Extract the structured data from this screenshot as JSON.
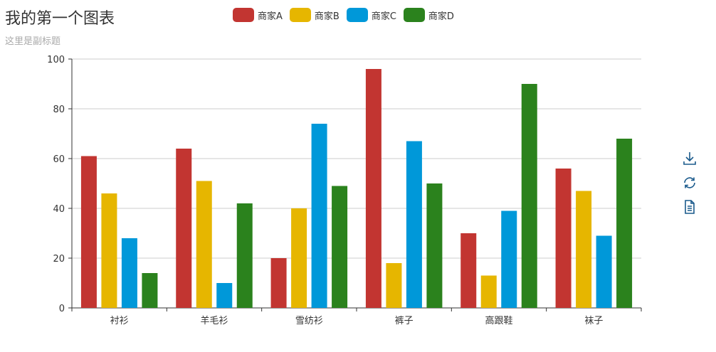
{
  "title": "我的第一个图表",
  "subtitle": "这里是副标题",
  "colors": {
    "series": [
      "#c23531",
      "#e6b600",
      "#0098d9",
      "#2b821d"
    ],
    "axis": "#333333",
    "grid": "#cccccc",
    "toolbox": "#1a5a8c"
  },
  "legend": [
    "商家A",
    "商家B",
    "商家C",
    "商家D"
  ],
  "toolbox": {
    "icons": [
      "download-icon",
      "refresh-icon",
      "data-view-icon"
    ]
  },
  "chart_data": {
    "type": "bar",
    "title": "我的第一个图表",
    "subtitle": "这里是副标题",
    "categories": [
      "衬衫",
      "羊毛衫",
      "雪纺衫",
      "裤子",
      "高跟鞋",
      "袜子"
    ],
    "series": [
      {
        "name": "商家A",
        "values": [
          61,
          64,
          20,
          96,
          30,
          56
        ]
      },
      {
        "name": "商家B",
        "values": [
          46,
          51,
          40,
          18,
          13,
          47
        ]
      },
      {
        "name": "商家C",
        "values": [
          28,
          10,
          74,
          67,
          39,
          29
        ]
      },
      {
        "name": "商家D",
        "values": [
          14,
          42,
          49,
          50,
          90,
          68
        ]
      }
    ],
    "ylim": [
      0,
      100
    ],
    "yticks": [
      0,
      20,
      40,
      60,
      80,
      100
    ],
    "grid": true,
    "legend_position": "top-center"
  }
}
